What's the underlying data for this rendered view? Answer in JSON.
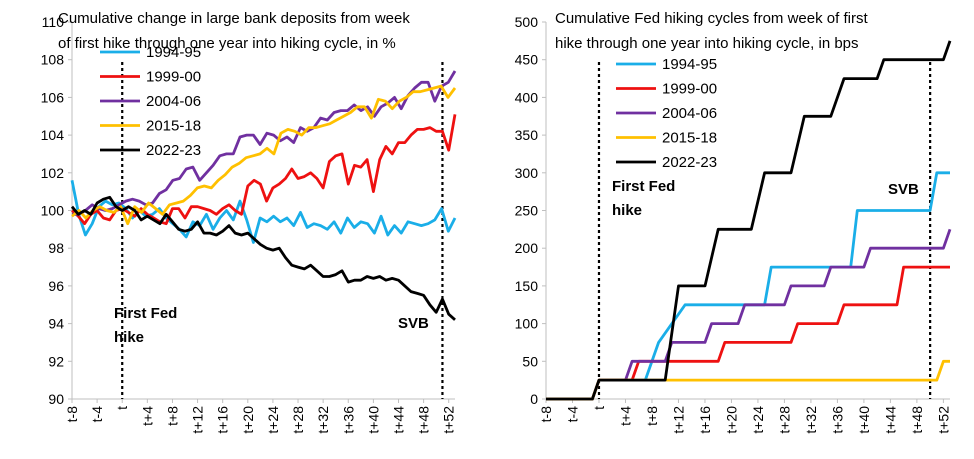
{
  "chart_data": [
    {
      "type": "line",
      "title": "Cumulative change in large bank deposits from week of first hike through one year into hiking cycle, in %",
      "title_lines": [
        "Cumulative change in large bank deposits from week",
        "of first hike through one year into hiking cycle, in %"
      ],
      "x_range": [
        -8,
        53
      ],
      "x_tick_labels": [
        "t-8",
        "t-4",
        "t",
        "t+4",
        "t+8",
        "t+12",
        "t+16",
        "t+20",
        "t+24",
        "t+28",
        "t+32",
        "t+36",
        "t+40",
        "t+44",
        "t+48",
        "t+52"
      ],
      "ylim": [
        90,
        110
      ],
      "y_ticks": [
        90,
        92,
        94,
        96,
        98,
        100,
        102,
        104,
        106,
        108,
        110
      ],
      "grid": false,
      "legend_position": "top-left",
      "vlines": [
        0,
        51
      ],
      "annotations": [
        {
          "lines": [
            "First Fed",
            "hike"
          ]
        },
        {
          "lines": [
            "SVB"
          ]
        }
      ],
      "series": [
        {
          "name": "1994-95",
          "color": "#1AAEE8",
          "values": [
            101.6,
            99.8,
            98.7,
            99.3,
            100.2,
            100.5,
            100.3,
            100.4,
            100.1,
            99.6,
            100.0,
            99.7,
            99.8,
            100.1,
            99.6,
            99.3,
            99.0,
            98.6,
            99.4,
            99.2,
            99.8,
            99.0,
            99.6,
            100.0,
            99.5,
            100.5,
            99.5,
            98.3,
            99.6,
            99.4,
            99.7,
            99.4,
            99.6,
            99.2,
            99.9,
            99.1,
            99.3,
            99.2,
            99.0,
            99.4,
            98.8,
            99.6,
            99.1,
            99.4,
            99.3,
            98.8,
            99.7,
            98.7,
            99.2,
            98.8,
            99.4,
            99.3,
            99.2,
            99.3,
            99.5,
            100.1,
            98.9,
            99.6
          ]
        },
        {
          "name": "1999-00",
          "color": "#EE1111",
          "values": [
            100.0,
            99.7,
            99.3,
            99.8,
            100.0,
            99.6,
            99.5,
            100.0,
            100.1,
            99.9,
            99.7,
            100.1,
            99.8,
            99.6,
            99.4,
            99.3,
            100.1,
            100.1,
            99.6,
            100.2,
            100.2,
            100.1,
            100.0,
            99.8,
            100.1,
            100.3,
            100.0,
            99.8,
            101.3,
            101.6,
            101.4,
            100.5,
            101.2,
            101.4,
            101.7,
            102.2,
            101.7,
            101.8,
            102.0,
            101.7,
            101.2,
            102.6,
            102.9,
            103.0,
            101.4,
            102.4,
            102.3,
            102.7,
            101.0,
            102.7,
            103.4,
            103.0,
            103.6,
            103.6,
            104.0,
            104.3,
            104.3,
            104.4,
            104.2,
            104.2,
            103.2,
            105.1
          ]
        },
        {
          "name": "2004-06",
          "color": "#7030A0",
          "values": [
            99.8,
            99.8,
            100.0,
            100.3,
            100.1,
            100.0,
            100.1,
            100.3,
            100.5,
            100.6,
            100.5,
            100.3,
            100.4,
            100.9,
            101.1,
            101.6,
            101.7,
            102.2,
            102.3,
            101.6,
            102.0,
            102.4,
            102.9,
            103.0,
            103.0,
            103.9,
            104.0,
            104.0,
            103.5,
            104.1,
            104.0,
            103.7,
            103.9,
            103.6,
            104.4,
            104.2,
            104.4,
            104.9,
            104.8,
            105.2,
            105.3,
            105.3,
            105.6,
            105.3,
            105.5,
            105.0,
            105.5,
            105.7,
            106.0,
            105.4,
            106.1,
            106.5,
            106.8,
            106.8,
            105.8,
            106.6,
            106.8,
            107.4
          ]
        },
        {
          "name": "2015-18",
          "color": "#FFC000",
          "values": [
            99.7,
            100.0,
            99.6,
            100.0,
            100.2,
            100.0,
            99.9,
            100.2,
            99.3,
            100.2,
            99.9,
            100.4,
            100.1,
            99.8,
            100.3,
            100.4,
            100.5,
            100.8,
            101.2,
            101.3,
            101.2,
            101.6,
            101.9,
            102.3,
            102.5,
            102.8,
            102.9,
            103.0,
            103.3,
            103.0,
            104.1,
            104.3,
            104.2,
            104.0,
            104.4,
            104.4,
            104.5,
            104.6,
            104.8,
            105.0,
            105.2,
            105.5,
            105.5,
            104.9,
            105.9,
            105.8,
            105.4,
            105.8,
            106.0,
            106.3,
            106.3,
            106.4,
            106.5,
            106.6,
            106.0,
            106.5
          ]
        },
        {
          "name": "2022-23",
          "color": "#000000",
          "values": [
            100.2,
            99.8,
            100.0,
            99.8,
            100.4,
            100.6,
            100.7,
            100.2,
            100.0,
            100.2,
            100.0,
            99.5,
            99.7,
            99.5,
            99.3,
            99.8,
            99.4,
            99.0,
            98.9,
            99.0,
            99.4,
            98.8,
            98.8,
            98.7,
            98.9,
            99.2,
            98.8,
            98.7,
            98.8,
            98.5,
            98.2,
            98.0,
            97.9,
            98.0,
            97.5,
            97.1,
            97.0,
            96.9,
            97.1,
            96.8,
            96.5,
            96.5,
            96.6,
            96.8,
            96.2,
            96.3,
            96.3,
            96.5,
            96.4,
            96.5,
            96.3,
            96.4,
            96.3,
            96.0,
            95.7,
            95.6,
            95.5,
            95.0,
            94.6,
            95.3,
            94.5,
            94.2
          ]
        }
      ]
    },
    {
      "type": "line",
      "title": "Cumulative Fed hiking cycles from week of first hike through one year into hiking cycle, in bps",
      "title_lines": [
        "Cumulative Fed hiking cycles from week of first",
        "hike through one year into hiking cycle, in bps"
      ],
      "x_range": [
        -8,
        53
      ],
      "x_tick_labels": [
        "t-8",
        "t-4",
        "t",
        "t+4",
        "t+8",
        "t+12",
        "t+16",
        "t+20",
        "t+24",
        "t+28",
        "t+32",
        "t+36",
        "t+40",
        "t+44",
        "t+48",
        "t+52"
      ],
      "ylim": [
        0,
        500
      ],
      "y_ticks": [
        0,
        50,
        100,
        150,
        200,
        250,
        300,
        350,
        400,
        450,
        500
      ],
      "grid": false,
      "legend_position": "top-left",
      "vlines": [
        0,
        50
      ],
      "annotations": [
        {
          "lines": [
            "First Fed",
            "hike"
          ]
        },
        {
          "lines": [
            "SVB"
          ]
        }
      ],
      "series": [
        {
          "name": "1994-95",
          "color": "#1AAEE8",
          "points": [
            [
              -8,
              0
            ],
            [
              -1,
              0
            ],
            [
              0,
              25
            ],
            [
              7,
              25
            ],
            [
              9,
              75
            ],
            [
              13,
              125
            ],
            [
              25,
              125
            ],
            [
              26,
              175
            ],
            [
              38,
              175
            ],
            [
              39,
              250
            ],
            [
              50,
              250
            ],
            [
              51,
              300
            ],
            [
              53,
              300
            ]
          ]
        },
        {
          "name": "1999-00",
          "color": "#EE1111",
          "points": [
            [
              -8,
              0
            ],
            [
              -1,
              0
            ],
            [
              0,
              25
            ],
            [
              5,
              25
            ],
            [
              6,
              50
            ],
            [
              18,
              50
            ],
            [
              19,
              75
            ],
            [
              29,
              75
            ],
            [
              30,
              100
            ],
            [
              36,
              100
            ],
            [
              37,
              125
            ],
            [
              45,
              125
            ],
            [
              46,
              175
            ],
            [
              53,
              175
            ]
          ]
        },
        {
          "name": "2004-06",
          "color": "#7030A0",
          "points": [
            [
              -8,
              0
            ],
            [
              -1,
              0
            ],
            [
              0,
              25
            ],
            [
              4,
              25
            ],
            [
              5,
              50
            ],
            [
              10,
              50
            ],
            [
              11,
              75
            ],
            [
              16,
              75
            ],
            [
              17,
              100
            ],
            [
              21,
              100
            ],
            [
              22,
              125
            ],
            [
              28,
              125
            ],
            [
              29,
              150
            ],
            [
              34,
              150
            ],
            [
              35,
              175
            ],
            [
              40,
              175
            ],
            [
              41,
              200
            ],
            [
              52,
              200
            ],
            [
              53,
              225
            ]
          ]
        },
        {
          "name": "2015-18",
          "color": "#FFC000",
          "points": [
            [
              -8,
              0
            ],
            [
              -1,
              0
            ],
            [
              0,
              25
            ],
            [
              51,
              25
            ],
            [
              52,
              50
            ],
            [
              53,
              50
            ]
          ]
        },
        {
          "name": "2022-23",
          "color": "#000000",
          "points": [
            [
              -8,
              0
            ],
            [
              -1,
              0
            ],
            [
              0,
              25
            ],
            [
              10,
              25
            ],
            [
              12,
              150
            ],
            [
              16,
              150
            ],
            [
              18,
              225
            ],
            [
              23,
              225
            ],
            [
              25,
              300
            ],
            [
              29,
              300
            ],
            [
              31,
              375
            ],
            [
              35,
              375
            ],
            [
              37,
              425
            ],
            [
              42,
              425
            ],
            [
              43,
              450
            ],
            [
              52,
              450
            ],
            [
              53,
              475
            ]
          ]
        }
      ]
    }
  ]
}
